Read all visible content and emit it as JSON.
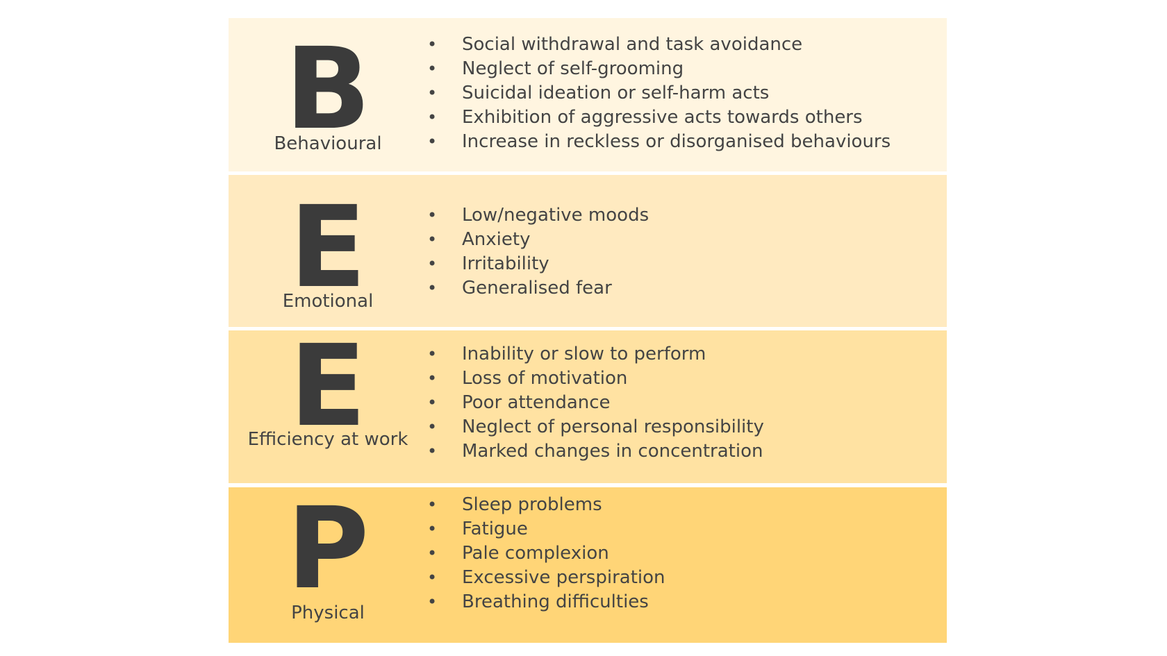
{
  "colors": {
    "band_behavioural": "#fff5e0",
    "band_emotional": "#ffeac0",
    "band_efficiency": "#ffe2a2",
    "band_physical": "#ffd577",
    "letter": "#3b3b3b",
    "text": "#444444"
  },
  "bullet_glyph": "•",
  "bands": [
    {
      "letter": "B",
      "category": "Behavioural",
      "items": [
        "Social withdrawal and task avoidance",
        "Neglect of self-grooming",
        "Suicidal ideation or self-harm acts",
        "Exhibition of aggressive acts towards others",
        "Increase in reckless or disorganised behaviours"
      ]
    },
    {
      "letter": "E",
      "category": "Emotional",
      "items": [
        "Low/negative moods",
        "Anxiety",
        "Irritability",
        "Generalised fear"
      ]
    },
    {
      "letter": "E",
      "category": "Efficiency at work",
      "items": [
        "Inability or slow to perform",
        "Loss of motivation",
        "Poor attendance",
        "Neglect of personal responsibility",
        "Marked changes in concentration"
      ]
    },
    {
      "letter": "P",
      "category": "Physical",
      "items": [
        "Sleep problems",
        "Fatigue",
        "Pale complexion",
        "Excessive perspiration",
        "Breathing difficulties"
      ]
    }
  ]
}
